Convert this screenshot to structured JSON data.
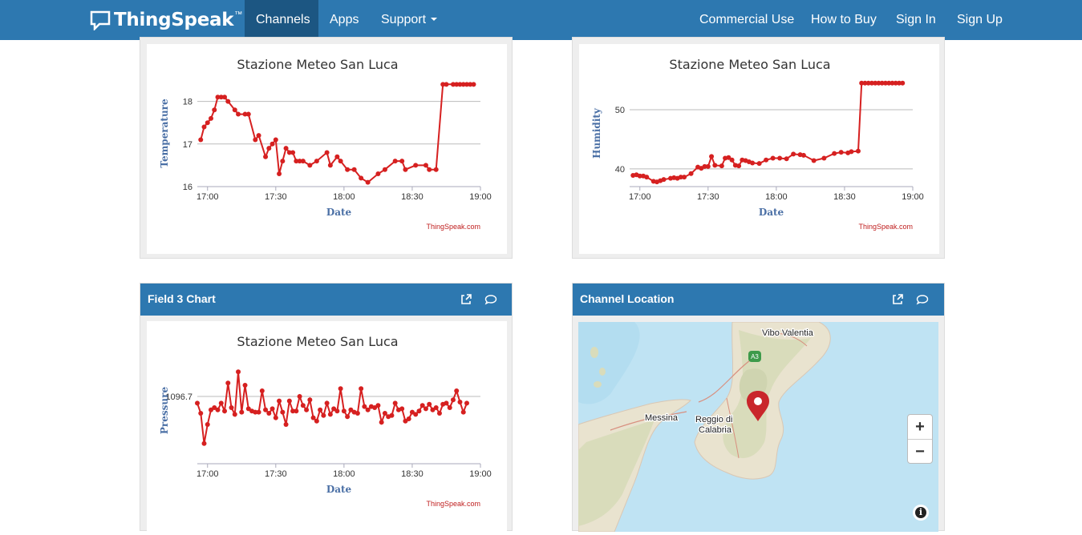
{
  "navbar": {
    "brand": "ThingSpeak",
    "brand_tm": "™",
    "items": [
      "Channels",
      "Apps",
      "Support"
    ],
    "right_items": [
      "Commercial Use",
      "How to Buy",
      "Sign In",
      "Sign Up"
    ]
  },
  "panels": {
    "field3_title": "Field 3 Chart",
    "location_title": "Channel Location"
  },
  "map": {
    "labels": [
      "Vibo Valentia",
      "Messina",
      "Reggio di",
      "Calabria",
      "A3"
    ],
    "zoom_in": "+",
    "zoom_out": "−",
    "info": "i"
  },
  "colors": {
    "navbar": "#2d78b0",
    "active": "#1c5682",
    "series": "#d62020"
  },
  "chart_data": [
    {
      "type": "line",
      "title": "Stazione Meteo San Luca",
      "xlabel": "Date",
      "ylabel": "Temperature",
      "credit": "ThingSpeak.com",
      "x_ticks": [
        "17:00",
        "17:30",
        "18:00",
        "18:30",
        "19:00"
      ],
      "y_ticks": [
        16,
        17,
        18
      ],
      "xlim": [
        -3,
        80
      ],
      "ylim": [
        16,
        18.5
      ],
      "x": [
        -2,
        -1,
        0,
        1,
        2,
        3,
        4,
        5,
        6,
        8,
        9,
        11,
        12,
        14,
        15,
        17,
        18,
        19,
        20,
        21,
        22,
        23,
        24,
        25,
        26,
        27,
        28,
        30,
        32,
        35,
        36,
        38,
        39,
        41,
        43,
        45,
        47,
        50,
        52,
        55,
        57,
        58,
        61,
        64,
        65,
        67,
        69,
        70,
        72,
        73,
        74,
        75,
        76,
        77,
        78
      ],
      "y": [
        17.1,
        17.4,
        17.5,
        17.6,
        17.8,
        18.1,
        18.1,
        18.1,
        18.0,
        17.8,
        17.7,
        17.7,
        17.7,
        17.1,
        17.2,
        16.7,
        16.9,
        17.0,
        17.1,
        16.3,
        16.6,
        16.9,
        16.8,
        16.8,
        16.6,
        16.6,
        16.6,
        16.5,
        16.6,
        16.8,
        16.5,
        16.7,
        16.6,
        16.4,
        16.4,
        16.2,
        16.1,
        16.3,
        16.4,
        16.6,
        16.6,
        16.4,
        16.5,
        16.5,
        16.4,
        16.4,
        18.4,
        18.4,
        18.4,
        18.4,
        18.4,
        18.4,
        18.4,
        18.4,
        18.4
      ]
    },
    {
      "type": "line",
      "title": "Stazione Meteo San Luca",
      "xlabel": "Date",
      "ylabel": "Humidity",
      "credit": "ThingSpeak.com",
      "x_ticks": [
        "17:00",
        "17:30",
        "18:00",
        "18:30",
        "19:00"
      ],
      "y_ticks": [
        40,
        50
      ],
      "xlim": [
        -3,
        80
      ],
      "ylim": [
        37,
        55
      ],
      "x": [
        -2,
        -1,
        0,
        1,
        2,
        4,
        5,
        6,
        7,
        9,
        10,
        11,
        12,
        13,
        15,
        17,
        18,
        19,
        20,
        21,
        22,
        24,
        25,
        26,
        27,
        28,
        29,
        30,
        31,
        32,
        33,
        35,
        37,
        39,
        41,
        43,
        45,
        47,
        48,
        51,
        54,
        57,
        59,
        61,
        62,
        64,
        65,
        66,
        67,
        68,
        69,
        70,
        71,
        72,
        73,
        74,
        75,
        76,
        77
      ],
      "y": [
        38.9,
        39.0,
        38.8,
        38.8,
        38.6,
        37.9,
        37.8,
        38.0,
        38.2,
        38.4,
        38.5,
        38.4,
        38.6,
        38.6,
        39.2,
        40.3,
        40.1,
        40.4,
        40.4,
        42.1,
        40.6,
        40.5,
        41.8,
        41.9,
        41.5,
        40.6,
        40.5,
        41.5,
        41.4,
        41.2,
        41.0,
        40.9,
        41.5,
        41.8,
        41.8,
        41.7,
        42.5,
        42.4,
        42.3,
        41.4,
        41.8,
        42.6,
        42.8,
        42.7,
        42.9,
        43.0,
        54.5,
        54.5,
        54.5,
        54.5,
        54.5,
        54.5,
        54.5,
        54.5,
        54.5,
        54.5,
        54.5,
        54.5,
        54.5
      ]
    },
    {
      "type": "line",
      "title": "Stazione Meteo San Luca",
      "xlabel": "Date",
      "ylabel": "Pressure",
      "credit": "ThingSpeak.com",
      "x_ticks": [
        "17:00",
        "17:30",
        "18:00",
        "18:30",
        "19:00"
      ],
      "y_ticks": [
        1096.7
      ],
      "xlim": [
        -3,
        80
      ],
      "ylim": [
        1096.1,
        1097.05
      ],
      "x": [
        -3,
        -2,
        -1,
        0,
        1,
        2,
        3,
        4,
        5,
        6,
        7,
        8,
        9,
        10,
        11,
        12,
        13,
        14,
        15,
        16,
        17,
        18,
        19,
        20,
        21,
        22,
        23,
        24,
        25,
        26,
        27,
        28,
        29,
        30,
        31,
        32,
        33,
        34,
        35,
        36,
        37,
        38,
        39,
        40,
        41,
        42,
        43,
        44,
        45,
        46,
        47,
        48,
        49,
        50,
        51,
        52,
        53,
        54,
        55,
        56,
        57,
        58,
        59,
        60,
        61,
        62,
        63,
        64,
        65,
        66,
        67,
        68,
        69,
        70,
        71,
        72,
        73,
        74,
        75,
        76
      ],
      "y": [
        1096.64,
        1096.55,
        1096.28,
        1096.45,
        1096.58,
        1096.6,
        1096.58,
        1096.64,
        1096.57,
        1096.82,
        1096.6,
        1096.54,
        1096.92,
        1096.56,
        1096.8,
        1096.59,
        1096.57,
        1096.56,
        1096.56,
        1096.75,
        1096.58,
        1096.55,
        1096.59,
        1096.51,
        1096.66,
        1096.56,
        1096.45,
        1096.66,
        1096.57,
        1096.57,
        1096.7,
        1096.62,
        1096.58,
        1096.67,
        1096.51,
        1096.48,
        1096.58,
        1096.53,
        1096.64,
        1096.54,
        1096.59,
        1096.57,
        1096.77,
        1096.57,
        1096.52,
        1096.58,
        1096.56,
        1096.55,
        1096.77,
        1096.61,
        1096.58,
        1096.61,
        1096.6,
        1096.62,
        1096.47,
        1096.55,
        1096.52,
        1096.53,
        1096.64,
        1096.58,
        1096.59,
        1096.48,
        1096.5,
        1096.56,
        1096.54,
        1096.57,
        1096.62,
        1096.59,
        1096.63,
        1096.58,
        1096.6,
        1096.55,
        1096.63,
        1096.64,
        1096.6,
        1096.67,
        1096.75,
        1096.65,
        1096.56,
        1096.64
      ]
    }
  ]
}
